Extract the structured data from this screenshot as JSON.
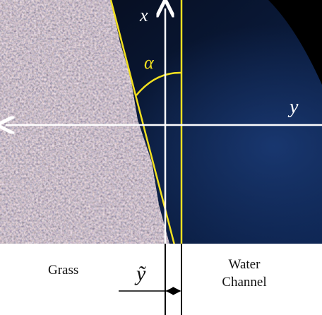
{
  "labels": {
    "x_axis": "x",
    "y_axis": "y",
    "angle": "α",
    "grass": "Grass",
    "water_channel": [
      "Water",
      "Channel"
    ],
    "offset": "ỹ"
  }
}
